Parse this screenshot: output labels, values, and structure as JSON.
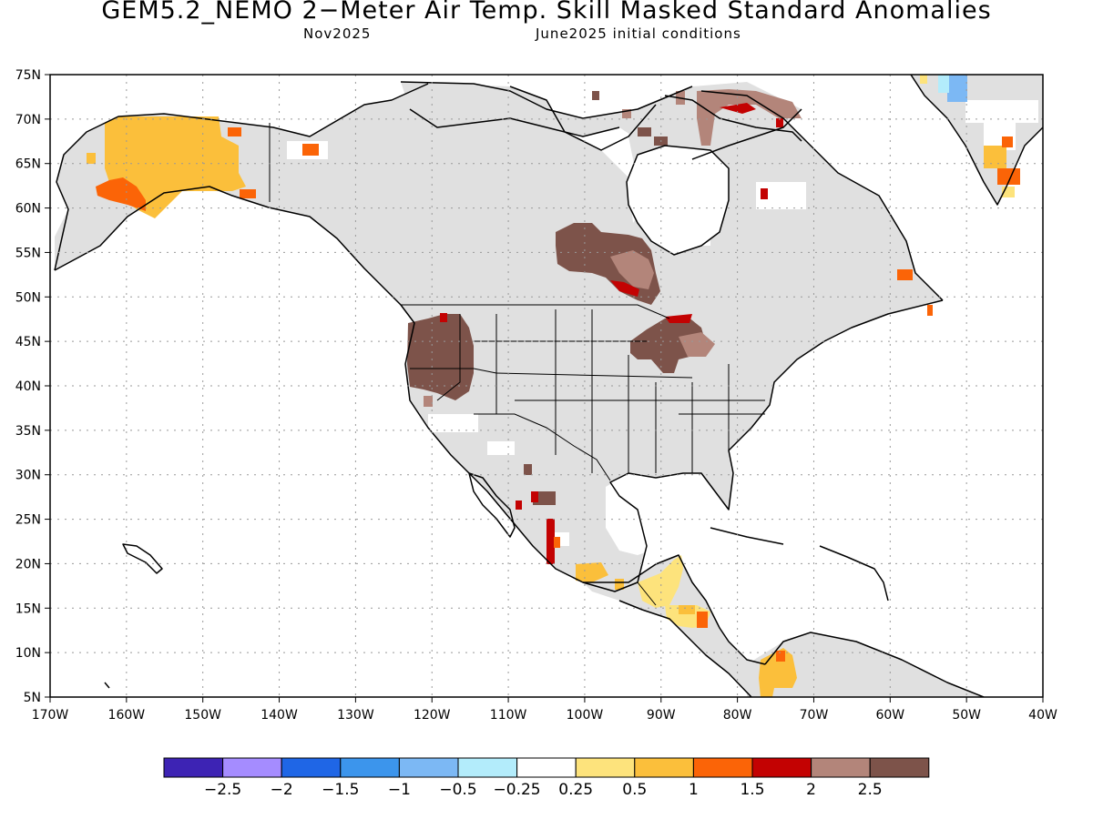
{
  "title": "GEM5.2_NEMO 2−Meter Air Temp. Skill Masked Standard Anomalies",
  "subtitle_left": "Nov2025",
  "subtitle_right": "June2025 initial conditions",
  "map": {
    "lon_range": [
      -170,
      -40
    ],
    "lat_range": [
      5,
      75
    ],
    "lon_ticks": [
      "170W",
      "160W",
      "150W",
      "140W",
      "130W",
      "120W",
      "110W",
      "100W",
      "90W",
      "80W",
      "70W",
      "60W",
      "50W",
      "40W"
    ],
    "lat_ticks": [
      "75N",
      "70N",
      "65N",
      "60N",
      "55N",
      "50N",
      "45N",
      "40N",
      "35N",
      "30N",
      "25N",
      "20N",
      "15N",
      "10N",
      "5N"
    ],
    "masked_color": "#e0e0e0",
    "regions": [
      {
        "label": "Alaska",
        "anomaly": "0.5 to 1",
        "color": "#fbbf3b"
      },
      {
        "label": "Southwest Alaska",
        "anomaly": "1 to 1.5",
        "color": "#fb6407"
      },
      {
        "label": "Northern Great Plains / Hudson Bay west",
        "anomaly": "> 2.5",
        "color": "#7d534a"
      },
      {
        "label": "Pacific Northwest",
        "anomaly": "> 2.5",
        "color": "#7d534a"
      },
      {
        "label": "Upper Great Lakes",
        "anomaly": "> 2.5",
        "color": "#7d534a"
      },
      {
        "label": "Baffin Island",
        "anomaly": "2 to 2.5",
        "color": "#b3857a"
      },
      {
        "label": "Central America",
        "anomaly": "0.25 to 0.5",
        "color": "#fde37c"
      },
      {
        "label": "Northern South America",
        "anomaly": "0.5 to 1",
        "color": "#fbbf3b"
      },
      {
        "label": "Greenland east coast",
        "anomaly": "-0.5 to -1",
        "color": "#7cb8f4"
      }
    ]
  },
  "colorbar": {
    "colors": [
      "#3d23b4",
      "#a58cff",
      "#1f66e6",
      "#3c95ec",
      "#7cb8f4",
      "#b3ecfb",
      "#ffffff",
      "#fde37c",
      "#fbbf3b",
      "#fb6407",
      "#c30202",
      "#b3857a",
      "#7d534a"
    ],
    "labels": [
      "−2.5",
      "−2",
      "−1.5",
      "−1",
      "−0.5",
      "−0.25",
      "0.25",
      "0.5",
      "1",
      "1.5",
      "2",
      "2.5"
    ]
  }
}
